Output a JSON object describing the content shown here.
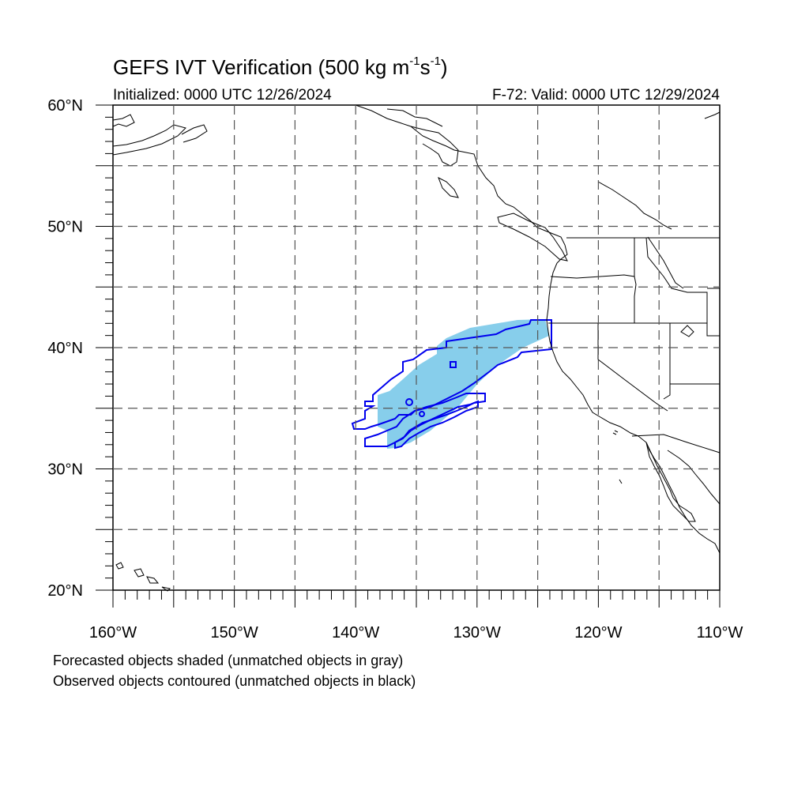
{
  "title": {
    "main": "GEFS IVT Verification (500 kg m",
    "exp1": "-1",
    "mid": "s",
    "exp2": "-1",
    "close": ")"
  },
  "init_label": "Initialized: 0000 UTC 12/26/2024",
  "valid_label": "F-72: Valid: 0000 UTC 12/29/2024",
  "notes": [
    "Forecasted objects shaded (unmatched objects in gray)",
    "Observed objects contoured (unmatched objects in black)"
  ],
  "axes": {
    "lon_labels": [
      "160°W",
      "150°W",
      "140°W",
      "130°W",
      "120°W",
      "110°W"
    ],
    "lat_labels": [
      "60°N",
      "50°N",
      "40°N",
      "30°N",
      "20°N"
    ],
    "lon_range": [
      -160,
      -110
    ],
    "lat_range": [
      20,
      60
    ],
    "grid_lon": [
      -155,
      -150,
      -145,
      -140,
      -135,
      -130,
      -125,
      -120,
      -115
    ],
    "grid_lat": [
      25,
      30,
      35,
      40,
      45,
      50,
      55
    ]
  },
  "colors": {
    "forecast_fill": "#87ceeb",
    "observed_contour": "#0000ee",
    "coastline": "#000000",
    "grid": "#555555"
  }
}
